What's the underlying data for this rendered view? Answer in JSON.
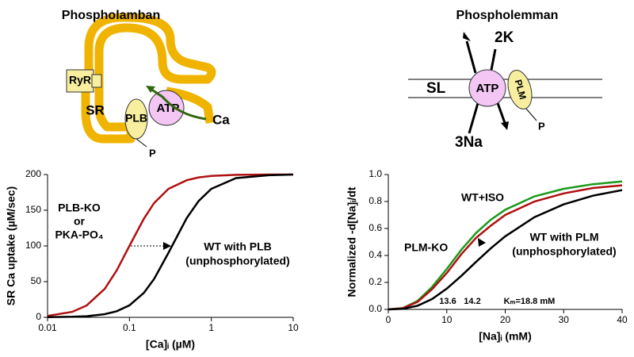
{
  "chart_data": [
    {
      "type": "line",
      "title": "Phospholamban",
      "x_label": "[Ca]ᵢ (µM)",
      "y_label": "SR Ca uptake (µM/sec)",
      "xscale": "log",
      "x": [
        0.01,
        0.02,
        0.03,
        0.05,
        0.07,
        0.1,
        0.15,
        0.2,
        0.3,
        0.5,
        0.7,
        1,
        2,
        5,
        10
      ],
      "series": [
        {
          "name": "PLB-KO or PKA-PO₄",
          "color": "#b01010",
          "values": [
            1.98,
            7.7,
            16.5,
            40,
            65.8,
            100,
            138,
            160,
            180,
            192,
            196,
            198,
            199.5,
            200,
            200
          ]
        },
        {
          "name": "WT with PLB (unphosphorylated)",
          "color": "#000000",
          "values": [
            0.18,
            0.73,
            1.6,
            4.4,
            8.6,
            16.8,
            34.2,
            53.7,
            90.5,
            139,
            163,
            180,
            195,
            199,
            200
          ]
        }
      ],
      "xlim": [
        0.01,
        10
      ],
      "xticks": [
        0.01,
        0.1,
        1,
        10
      ],
      "ylim": [
        0,
        200
      ],
      "yticks": [
        0,
        50,
        100,
        150,
        200
      ],
      "annotations": [
        "PLB-KO",
        "or",
        "PKA-PO₄",
        "WT with PLB",
        "(unphosphorylated)"
      ]
    },
    {
      "type": "line",
      "title": "Phospholemman",
      "x_label": "[Na]ᵢ (mM)",
      "y_label": "Normalized -d[Na]ᵢ/dt",
      "x": [
        0,
        2.5,
        5,
        7.5,
        10,
        12.5,
        15,
        17.5,
        20,
        25,
        30,
        35,
        40
      ],
      "series": [
        {
          "name": "WT+ISO",
          "color": "#1a9a1a",
          "values": [
            0,
            0.01,
            0.063,
            0.167,
            0.3,
            0.443,
            0.566,
            0.664,
            0.739,
            0.838,
            0.894,
            0.928,
            0.948
          ]
        },
        {
          "name": "PLM-KO",
          "color": "#b01010",
          "values": [
            0,
            0.009,
            0.055,
            0.15,
            0.27,
            0.41,
            0.53,
            0.62,
            0.7,
            0.8,
            0.86,
            0.9,
            0.92
          ]
        },
        {
          "name": "WT with PLM (unphosphorylated)",
          "color": "#000000",
          "values": [
            0,
            0.004,
            0.027,
            0.077,
            0.154,
            0.249,
            0.352,
            0.452,
            0.542,
            0.684,
            0.779,
            0.843,
            0.885
          ]
        }
      ],
      "xlim": [
        0,
        40
      ],
      "xticks": [
        0,
        10,
        20,
        30,
        40
      ],
      "ylim": [
        0,
        1
      ],
      "yticks": [
        {
          "value": 0,
          "label": "0.0"
        },
        {
          "value": 0.2,
          "label": "0.2"
        },
        {
          "value": 0.4,
          "label": "0.4"
        },
        {
          "value": 0.6,
          "label": "0.6"
        },
        {
          "value": 0.8,
          "label": "0.8"
        },
        {
          "value": 1,
          "label": "1.0"
        }
      ],
      "annotations": [
        "WT+ISO",
        "PLM-KO",
        "WT with PLM",
        "(unphosphorylated)",
        "13.6",
        "14.2",
        "Kₘ=18.8 mM"
      ]
    }
  ],
  "diagrams": {
    "phospholamban": {
      "ryr": "RyR",
      "sr": "SR",
      "plb": "PLB",
      "atp": "ATP",
      "ca": "Ca",
      "p": "P"
    },
    "phospholemman": {
      "sl": "SL",
      "atp": "ATP",
      "plm": "PLM",
      "k": "2K",
      "na": "3Na",
      "p": "P"
    }
  }
}
